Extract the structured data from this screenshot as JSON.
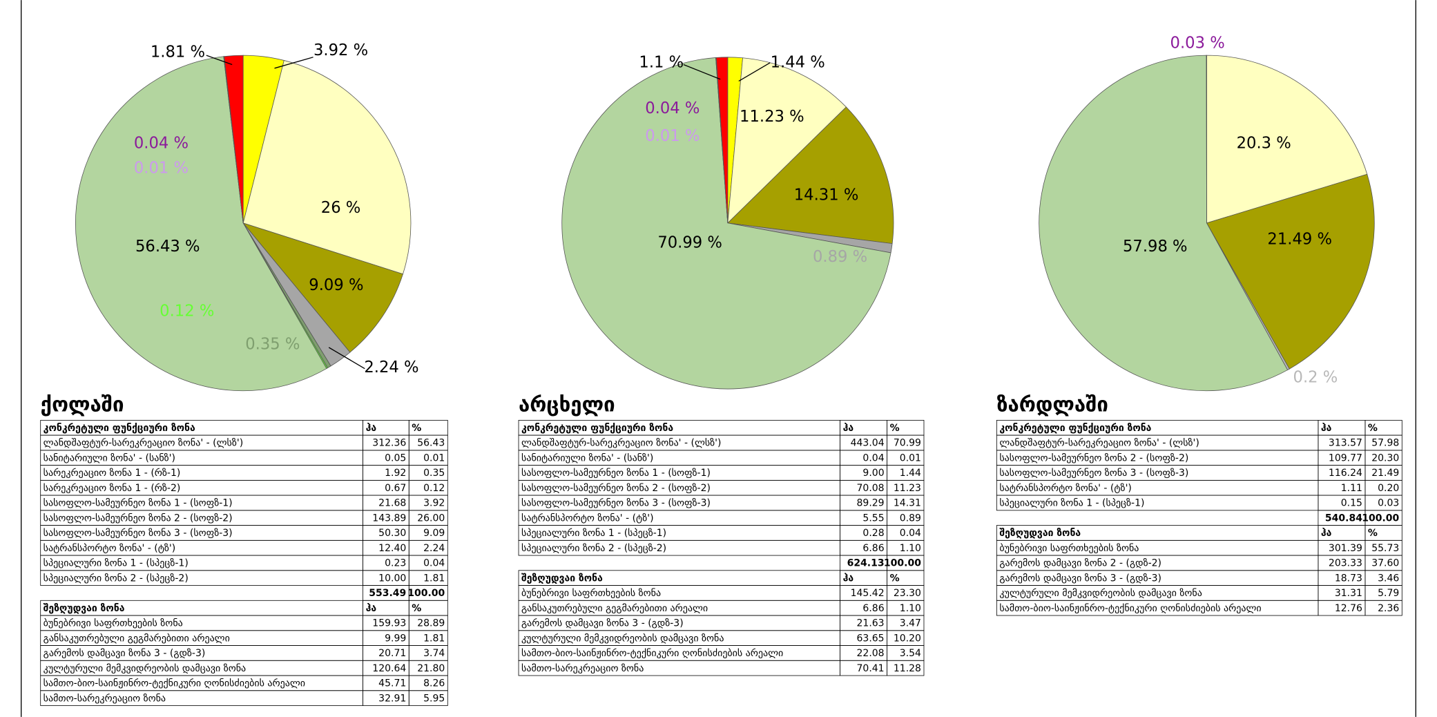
{
  "chart_data": [
    {
      "type": "pie",
      "values": [
        3.92,
        26,
        9.09,
        2.24,
        0.35,
        0.12,
        56.43,
        0.01,
        0.04,
        1.81
      ],
      "value_labels": [
        "3.92 %",
        "26 %",
        "9.09 %",
        "2.24 %",
        "0.35 %",
        "0.12 %",
        "56.43 %",
        "0.01 %",
        "0.04 %",
        "1.81 %"
      ],
      "colors": [
        "#ffff00",
        "#ffffc0",
        "#a6a000",
        "#a6a6a6",
        "#7f9f6f",
        "#66ff33",
        "#b3d59f",
        "#cc99ee",
        "#8b1a9b",
        "#ff0000"
      ]
    },
    {
      "type": "pie",
      "values": [
        1.44,
        11.23,
        14.31,
        0.89,
        70.99,
        0.01,
        0.04,
        1.1
      ],
      "value_labels": [
        "1.44 %",
        "11.23 %",
        "14.31 %",
        "0.89 %",
        "70.99 %",
        "0.01 %",
        "0.04 %",
        "1.1 %"
      ],
      "colors": [
        "#ffff00",
        "#ffffc0",
        "#a6a000",
        "#a6a6a6",
        "#b3d59f",
        "#cc99ee",
        "#8b1a9b",
        "#ff0000"
      ]
    },
    {
      "type": "pie",
      "values": [
        20.3,
        21.49,
        0.2,
        57.98,
        0.03
      ],
      "value_labels": [
        "20.3 %",
        "21.49 %",
        "0.2 %",
        "57.98 %",
        "0.03 %"
      ],
      "colors": [
        "#ffffc0",
        "#a6a000",
        "#b8b8b8",
        "#b3d59f",
        "#8b1a9b"
      ]
    }
  ],
  "sections": [
    {
      "title": "ქოლაში",
      "zones": {
        "header": [
          "კონკრეტული ფუნქციური ზონა",
          "ჰა",
          "%"
        ],
        "rows": [
          [
            "ლანდშაფტურ-სარეკრეაციო ზონა' - (ლსზ')",
            "312.36",
            "56.43"
          ],
          [
            "სანიტარიული ზონა' - (სანზ')",
            "0.05",
            "0.01"
          ],
          [
            "სარეკრეაციო ზონა 1 - (რზ-1)",
            "1.92",
            "0.35"
          ],
          [
            "სარეკრეაციო ზონა 1 - (რზ-2)",
            "0.67",
            "0.12"
          ],
          [
            "სასოფლო-სამეურნეო ზონა 1 - (სოფზ-1)",
            "21.68",
            "3.92"
          ],
          [
            "სასოფლო-სამეურნეო ზონა 2 - (სოფზ-2)",
            "143.89",
            "26.00"
          ],
          [
            "სასოფლო-სამეურნეო ზონა 3 - (სოფზ-3)",
            "50.30",
            "9.09"
          ],
          [
            "სატრანსპორტო ზონა' - (ტზ')",
            "12.40",
            "2.24"
          ],
          [
            "სპეციალური ზონა 1 - (სპეცზ-1)",
            "0.23",
            "0.04"
          ],
          [
            "სპეციალური ზონა 2 - (სპეცზ-2)",
            "10.00",
            "1.81"
          ]
        ],
        "total": [
          "553.49",
          "100.00"
        ]
      },
      "restricted": {
        "header": [
          "შეზღუდვაი ზონა",
          "ჰა",
          "%"
        ],
        "rows": [
          [
            "ბუნებრივი საფრთხეების ზონა",
            "159.93",
            "28.89"
          ],
          [
            "განსაკუთრებული გეგმარებითი არეალი",
            "9.99",
            "1.81"
          ],
          [
            "გარემოს დამცავი ზონა 3 - (გდზ-3)",
            "20.71",
            "3.74"
          ],
          [
            "კულტურული მემკვიდრეობის დამცავი ზონა",
            "120.64",
            "21.80"
          ],
          [
            "სამთო-ბიო-საინჟინრო-ტექნიკური ღონისძიების არეალი",
            "45.71",
            "8.26"
          ],
          [
            "სამთო-სარეკრეაციო ზონა",
            "32.91",
            "5.95"
          ]
        ]
      }
    },
    {
      "title": "არცხელი",
      "zones": {
        "header": [
          "კონკრეტული ფუნქციური ზონა",
          "ჰა",
          "%"
        ],
        "rows": [
          [
            "ლანდშაფტურ-სარეკრეაციო ზონა' - (ლსზ')",
            "443.04",
            "70.99"
          ],
          [
            "სანიტარიული ზონა' - (სანზ')",
            "0.04",
            "0.01"
          ],
          [
            "სასოფლო-სამეურნეო ზონა 1 - (სოფზ-1)",
            "9.00",
            "1.44"
          ],
          [
            "სასოფლო-სამეურნეო ზონა 2 - (სოფზ-2)",
            "70.08",
            "11.23"
          ],
          [
            "სასოფლო-სამეურნეო ზონა 3 - (სოფზ-3)",
            "89.29",
            "14.31"
          ],
          [
            "სატრანსპორტო ზონა' - (ტზ')",
            "5.55",
            "0.89"
          ],
          [
            "სპეციალური ზონა 1 - (სპეცზ-1)",
            "0.28",
            "0.04"
          ],
          [
            "სპეციალური ზონა 2 - (სპეცზ-2)",
            "6.86",
            "1.10"
          ]
        ],
        "total": [
          "624.13",
          "100.00"
        ]
      },
      "restricted": {
        "header": [
          "შეზღუდვაი ზონა",
          "ჰა",
          "%"
        ],
        "rows": [
          [
            "ბუნებრივი საფრთხეების ზონა",
            "145.42",
            "23.30"
          ],
          [
            "განსაკუთრებული გეგმარებითი არეალი",
            "6.86",
            "1.10"
          ],
          [
            "გარემოს დამცავი ზონა 3 - (გდზ-3)",
            "21.63",
            "3.47"
          ],
          [
            "კულტურული მემკვიდრეობის დამცავი ზონა",
            "63.65",
            "10.20"
          ],
          [
            "სამთო-ბიო-საინჟინრო-ტექნიკური ღონისძიების არეალი",
            "22.08",
            "3.54"
          ],
          [
            "სამთო-სარეკრეაციო ზონა",
            "70.41",
            "11.28"
          ]
        ]
      }
    },
    {
      "title": "ზარდლაში",
      "zones": {
        "header": [
          "კონკრეტული ფუნქციური ზონა",
          "ჰა",
          "%"
        ],
        "rows": [
          [
            "ლანდშაფტურ-სარეკრეაციო ზონა' - (ლსზ')",
            "313.57",
            "57.98"
          ],
          [
            "სასოფლო-სამეურნეო ზონა 2 - (სოფზ-2)",
            "109.77",
            "20.30"
          ],
          [
            "სასოფლო-სამეურნეო ზონა 3 - (სოფზ-3)",
            "116.24",
            "21.49"
          ],
          [
            "სატრანსპორტო ზონა' - (ტზ')",
            "1.11",
            "0.20"
          ],
          [
            "სპეციალური ზონა 1 - (სპეცზ-1)",
            "0.15",
            "0.03"
          ]
        ],
        "total": [
          "540.84",
          "100.00"
        ]
      },
      "restricted": {
        "header": [
          "შეზღუდვაი ზონა",
          "ჰა",
          "%"
        ],
        "rows": [
          [
            "ბუნებრივი საფრთხეების ზონა",
            "301.39",
            "55.73"
          ],
          [
            "გარემოს დამცავი ზონა 2 - (გდზ-2)",
            "203.33",
            "37.60"
          ],
          [
            "გარემოს დამცავი ზონა 3 - (გდზ-3)",
            "18.73",
            "3.46"
          ],
          [
            "კულტურული მემკვიდრეობის დამცავი ზონა",
            "31.31",
            "5.79"
          ],
          [
            "სამთო-ბიო-საინჟინრო-ტექნიკური ღონისძიების არეალი",
            "12.76",
            "2.36"
          ]
        ]
      }
    }
  ]
}
